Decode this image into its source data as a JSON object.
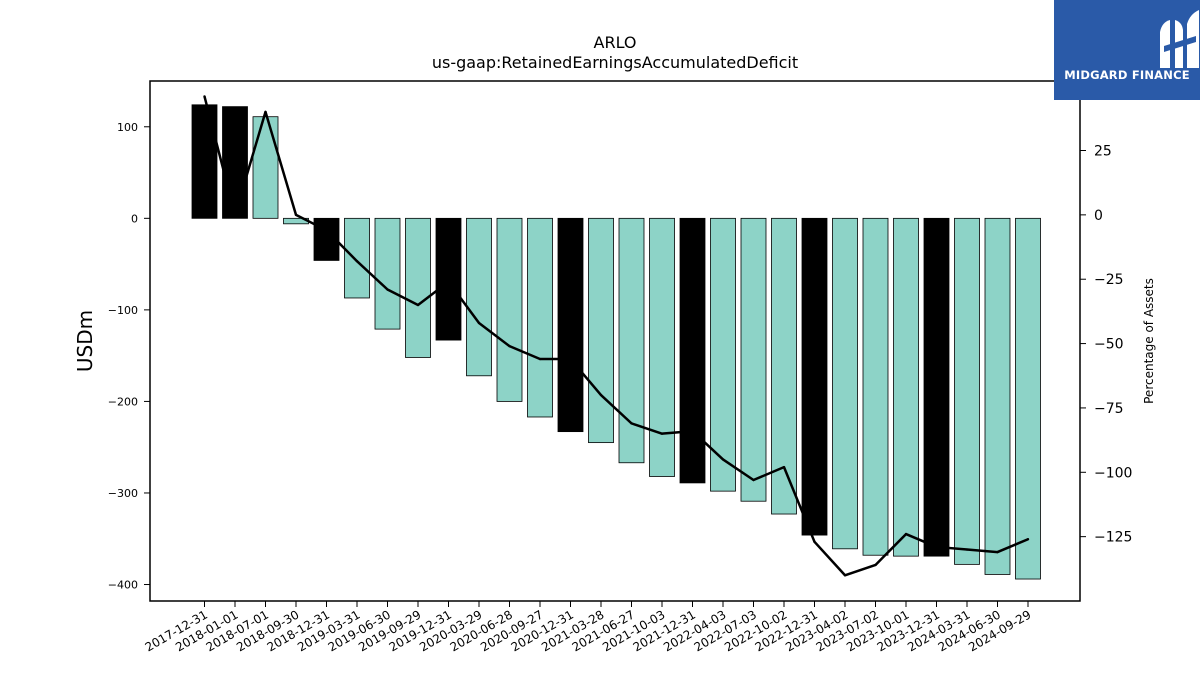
{
  "logo": {
    "text": "MIDGARD FINANCE"
  },
  "chart_data": {
    "type": "bar",
    "title": "ARLO",
    "subtitle": "us-gaap:RetainedEarningsAccumulatedDeficit",
    "ylabel_left": "USDm",
    "ylabel_right": "Percentage of Assets",
    "ylim_left": [
      -418,
      150
    ],
    "ylim_right": [
      -150,
      52
    ],
    "yticks_left": [
      100,
      0,
      -100,
      -200,
      -300,
      -400
    ],
    "yticks_right": [
      25,
      0,
      -25,
      -50,
      -75,
      -100,
      -125
    ],
    "yticklabels_left": [
      "100",
      "0",
      "−100",
      "−200",
      "−300",
      "−400"
    ],
    "yticklabels_right": [
      "25",
      "0",
      "−25",
      "−50",
      "−75",
      "−100",
      "−125"
    ],
    "categories": [
      "2017-12-31",
      "2018-01-01",
      "2018-07-01",
      "2018-09-30",
      "2018-12-31",
      "2019-03-31",
      "2019-06-30",
      "2019-09-29",
      "2019-12-31",
      "2020-03-29",
      "2020-06-28",
      "2020-09-27",
      "2020-12-31",
      "2021-03-28",
      "2021-06-27",
      "2021-10-03",
      "2021-12-31",
      "2022-04-03",
      "2022-07-03",
      "2022-10-02",
      "2022-12-31",
      "2023-04-02",
      "2023-07-02",
      "2023-10-01",
      "2023-12-31",
      "2024-03-31",
      "2024-06-30",
      "2024-09-29"
    ],
    "series": [
      {
        "kind": "bar",
        "axis": "left",
        "values": [
          124,
          122,
          111,
          -6,
          -46,
          -87,
          -121,
          -152,
          -133,
          -172,
          -200,
          -217,
          -233,
          -245,
          -267,
          -282,
          -289,
          -298,
          -309,
          -323,
          -346,
          -361,
          -368,
          -369,
          -369,
          -378,
          -389,
          -394
        ],
        "annual_flags": [
          true,
          true,
          false,
          false,
          true,
          false,
          false,
          false,
          true,
          false,
          false,
          false,
          true,
          false,
          false,
          false,
          true,
          false,
          false,
          false,
          true,
          false,
          false,
          false,
          true,
          false,
          false,
          false
        ]
      },
      {
        "kind": "line",
        "axis": "right",
        "values": [
          46,
          0,
          40,
          0,
          -6,
          -18,
          -29,
          -35,
          -26,
          -42,
          -51,
          -56,
          -56,
          -70,
          -81,
          -85,
          -84,
          -95,
          -103,
          -98,
          -127,
          -140,
          -136,
          -124,
          -129,
          -130,
          -131,
          -126
        ]
      }
    ],
    "colors": {
      "quarter_bar": "#8dd3c7",
      "annual_bar": "#000000",
      "line": "#000000"
    },
    "grid": false,
    "legend": "none"
  }
}
